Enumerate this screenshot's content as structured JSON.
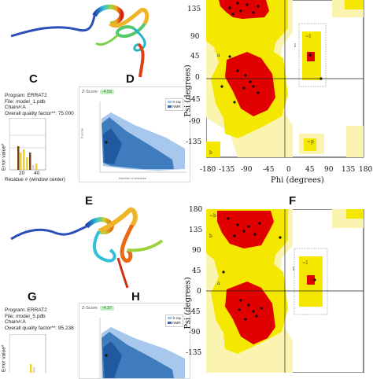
{
  "panels": {
    "C": "C",
    "D": "D",
    "E": "E",
    "F": "F",
    "G": "G",
    "H": "H"
  },
  "errat_top": {
    "program": "Program: ERRAT2",
    "file": "File: model_1.pdb",
    "chain": "Chain#:A",
    "quality": "Overall quality factor**: 75.000",
    "ylabel": "Error value*",
    "xlabel": "Residue # (window center)",
    "xticks": [
      "20",
      "40"
    ]
  },
  "errat_bottom": {
    "program": "Program: ERRAT2",
    "file": "File: model_5.pdb",
    "chain": "Chain#:A",
    "quality": "Overall quality factor**: 95.238",
    "ylabel": "Error value*"
  },
  "zscore_top": {
    "label": "Z-Score:",
    "value": "-4.59",
    "legend": [
      "X-ray",
      "NMR"
    ],
    "xlabel": "Number of residues",
    "ylabel": "Z-score"
  },
  "zscore_bottom": {
    "label": "Z-Score:",
    "value": "-4.37",
    "legend": [
      "X-ray",
      "NMR"
    ]
  },
  "rama_top": {
    "yticks": [
      "135",
      "90",
      "45",
      "0",
      "-45",
      "-90",
      "-135"
    ],
    "xticks": [
      "-180",
      "-135",
      "-90",
      "-45",
      "0",
      "45",
      "90",
      "135",
      "180"
    ],
    "ylabel": "Psi (degrees)",
    "xlabel": "Phi (degrees)"
  },
  "rama_bottom": {
    "yticks": [
      "180",
      "135",
      "90",
      "45",
      "0",
      "-45",
      "-90",
      "-135"
    ],
    "ylabel": "Psi (degrees)"
  },
  "colors": {
    "core": "#e00000",
    "allowed": "#f5e800",
    "generous": "#fbf4b0",
    "disallowed": "#ffffff",
    "xray": "#9fc4ea",
    "nmr": "#2d6fb5"
  }
}
